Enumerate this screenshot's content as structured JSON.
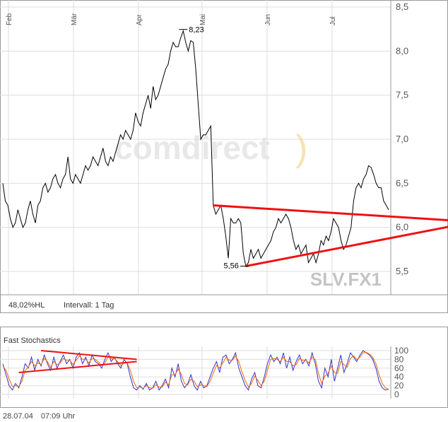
{
  "chart_data": [
    {
      "type": "line",
      "symbol": "SLV.FX1",
      "watermark": "comdirect",
      "x_labels": [
        "Feb",
        "Mär",
        "Apr",
        "Mai",
        "Jun",
        "Jul"
      ],
      "y_ticks": [
        "8,5",
        "8,0",
        "7,5",
        "7,0",
        "6,5",
        "6,0",
        "5,5"
      ],
      "y_tick_values": [
        8.5,
        8.0,
        7.5,
        7.0,
        6.5,
        6.0,
        5.5
      ],
      "ylim": [
        5.3,
        8.5
      ],
      "grid": true,
      "values": [
        6.5,
        6.3,
        6.25,
        6.1,
        6.0,
        6.05,
        6.2,
        6.1,
        6.0,
        6.05,
        6.2,
        6.3,
        6.15,
        6.05,
        6.25,
        6.3,
        6.45,
        6.5,
        6.4,
        6.45,
        6.55,
        6.6,
        6.5,
        6.45,
        6.55,
        6.6,
        6.8,
        6.55,
        6.5,
        6.6,
        6.55,
        6.5,
        6.6,
        6.7,
        6.65,
        6.7,
        6.8,
        6.75,
        6.7,
        6.8,
        6.9,
        6.75,
        6.7,
        6.8,
        6.75,
        6.85,
        6.95,
        7.05,
        7.0,
        7.1,
        7.05,
        7.0,
        7.1,
        7.3,
        7.2,
        7.15,
        7.3,
        7.4,
        7.5,
        7.35,
        7.6,
        7.45,
        7.5,
        7.6,
        7.7,
        7.8,
        7.85,
        8.0,
        8.1,
        8.05,
        8.05,
        8.15,
        8.23,
        8.1,
        8.0,
        8.12,
        8.1,
        7.8,
        7.4,
        7.0,
        7.05,
        7.05,
        7.1,
        7.15,
        6.25,
        6.15,
        6.2,
        6.25,
        6.1,
        5.9,
        5.65,
        6.1,
        6.05,
        6.05,
        6.1,
        6.05,
        5.7,
        5.56,
        5.6,
        5.75,
        5.65,
        5.7,
        5.75,
        5.65,
        5.7,
        5.75,
        5.8,
        5.85,
        5.95,
        6.0,
        6.1,
        6.05,
        6.1,
        6.15,
        6.1,
        6.0,
        5.85,
        5.75,
        5.8,
        5.7,
        5.75,
        5.8,
        5.6,
        5.65,
        5.7,
        5.6,
        5.7,
        5.85,
        5.8,
        5.9,
        5.85,
        5.95,
        6.1,
        6.05,
        6.0,
        5.85,
        5.75,
        5.8,
        5.9,
        6.0,
        6.3,
        6.45,
        6.5,
        6.45,
        6.55,
        6.6,
        6.7,
        6.68,
        6.6,
        6.5,
        6.45,
        6.45,
        6.3,
        6.25,
        6.2
      ],
      "annotations": [
        {
          "text": "8,23",
          "value": 8.23,
          "index": 72
        },
        {
          "text": "5,56",
          "value": 5.56,
          "index": 97
        }
      ],
      "trendlines": [
        {
          "name": "upper",
          "from": {
            "index": 84,
            "value": 6.25
          },
          "to": {
            "index": 184,
            "value": 6.07
          }
        },
        {
          "name": "lower",
          "from": {
            "index": 97,
            "value": 5.56
          },
          "to": {
            "index": 184,
            "value": 6.04
          }
        }
      ],
      "info_left": "48,02%HL",
      "info_right": "Intervall: 1 Tag"
    },
    {
      "type": "line",
      "title": "Fast Stochastics",
      "y_ticks": [
        "100",
        "80",
        "60",
        "40",
        "20",
        "0"
      ],
      "y_tick_values": [
        100,
        80,
        60,
        40,
        20,
        0
      ],
      "ylim": [
        0,
        100
      ],
      "series": [
        {
          "color": "#3333cc",
          "values": [
            70,
            45,
            20,
            10,
            25,
            15,
            40,
            70,
            60,
            85,
            55,
            80,
            65,
            90,
            70,
            55,
            85,
            60,
            75,
            90,
            70,
            80,
            60,
            85,
            95,
            70,
            85,
            65,
            90,
            75,
            70,
            60,
            80,
            95,
            75,
            85,
            70,
            60,
            80,
            70,
            40,
            15,
            10,
            20,
            12,
            25,
            10,
            15,
            30,
            10,
            20,
            35,
            15,
            60,
            40,
            70,
            30,
            15,
            25,
            45,
            20,
            10,
            30,
            15,
            20,
            40,
            60,
            75,
            50,
            85,
            90,
            70,
            80,
            95,
            60,
            40,
            20,
            10,
            35,
            50,
            20,
            15,
            40,
            70,
            90,
            75,
            85,
            70,
            95,
            60,
            85,
            55,
            75,
            90,
            70,
            80,
            65,
            95,
            70,
            30,
            15,
            60,
            40,
            80,
            30,
            60,
            90,
            50,
            70,
            95,
            85,
            75,
            90,
            100,
            95,
            90,
            80,
            60,
            30,
            15,
            10,
            12
          ]
        },
        {
          "color": "#ff6600",
          "values": [
            65,
            55,
            35,
            18,
            20,
            18,
            30,
            55,
            62,
            75,
            65,
            72,
            68,
            82,
            75,
            62,
            75,
            68,
            72,
            82,
            78,
            78,
            68,
            78,
            88,
            80,
            80,
            72,
            82,
            80,
            74,
            66,
            72,
            86,
            82,
            82,
            75,
            66,
            72,
            72,
            55,
            30,
            15,
            17,
            14,
            20,
            15,
            14,
            22,
            17,
            17,
            28,
            22,
            45,
            45,
            58,
            45,
            25,
            22,
            35,
            30,
            18,
            22,
            20,
            18,
            30,
            48,
            66,
            60,
            72,
            85,
            78,
            78,
            88,
            75,
            52,
            32,
            17,
            25,
            42,
            32,
            20,
            30,
            55,
            80,
            82,
            80,
            75,
            85,
            75,
            75,
            65,
            68,
            82,
            78,
            78,
            72,
            85,
            80,
            48,
            25,
            42,
            48,
            65,
            50,
            48,
            75,
            68,
            62,
            82,
            88,
            80,
            85,
            95,
            96,
            92,
            85,
            70,
            45,
            25,
            15,
            12
          ]
        }
      ],
      "trendlines": [
        {
          "from": {
            "index": 12,
            "value": 100
          },
          "to": {
            "index": 42,
            "value": 80
          }
        },
        {
          "from": {
            "index": 5,
            "value": 50
          },
          "to": {
            "index": 42,
            "value": 75
          }
        }
      ]
    }
  ],
  "footer": {
    "date": "28.07.04",
    "time": "07:09 Uhr"
  },
  "colors": {
    "price_line": "#000000",
    "trend": "#ee1111",
    "grid": "#dddddd",
    "frame": "#999999",
    "watermark": "#e8e8e8",
    "watermark_paren": "#f7e3b0",
    "symbol": "#c4c4c4"
  }
}
